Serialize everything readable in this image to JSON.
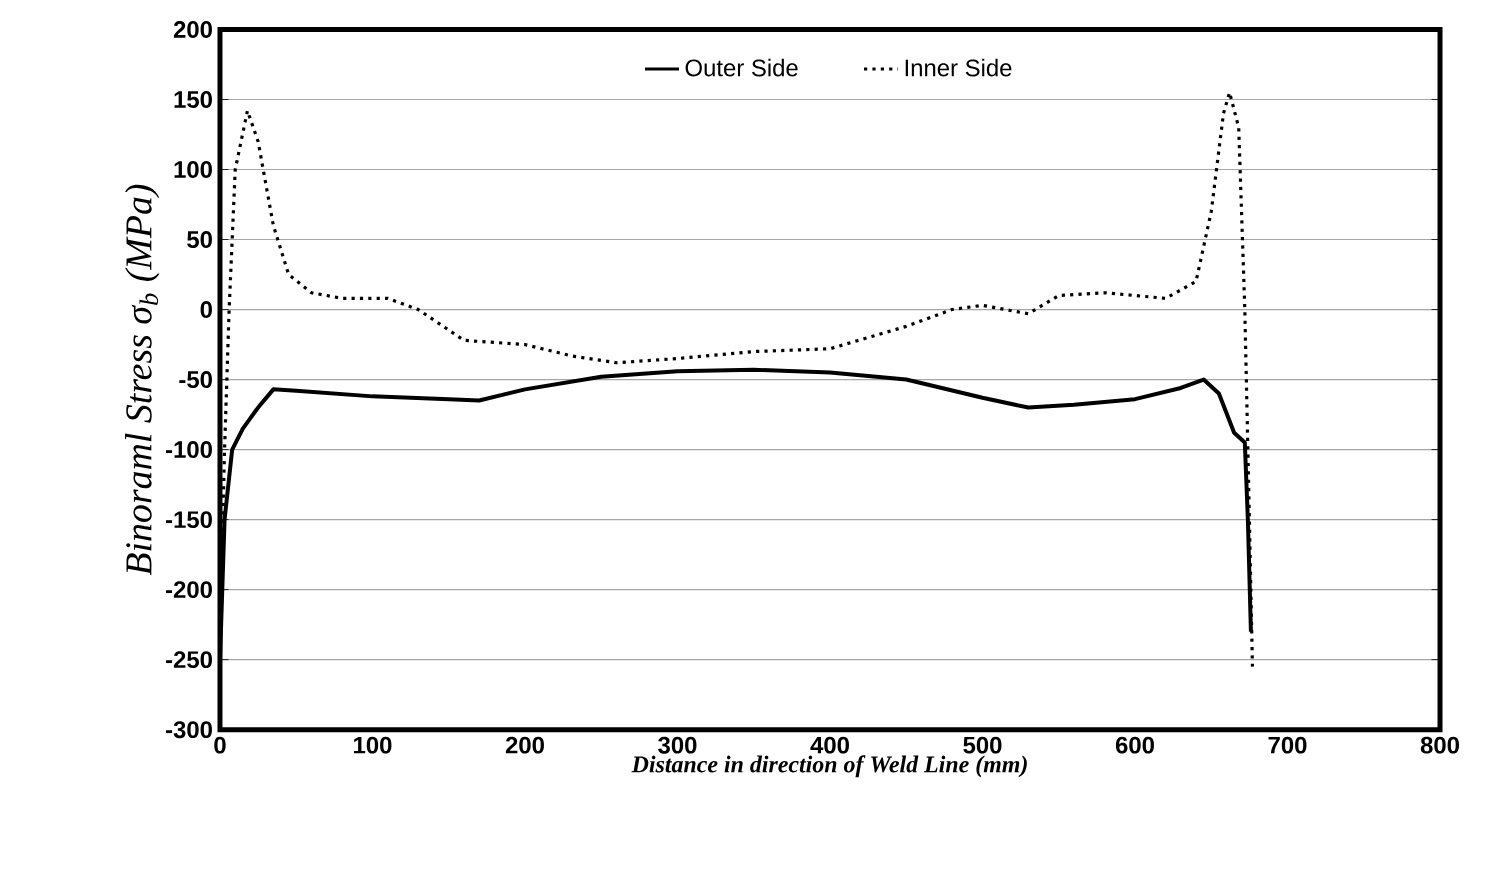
{
  "chart_data": {
    "type": "line",
    "xlabel": "Distance in direction of Weld Line (mm)",
    "ylabel": "Binoraml Stress σ$_{b}$ (MPa)",
    "xlim": [
      0,
      800
    ],
    "xticks": [
      0,
      100,
      200,
      300,
      400,
      500,
      600,
      700,
      800
    ],
    "ylim": [
      -300,
      200
    ],
    "yticks": [
      -300,
      -250,
      -200,
      -150,
      -100,
      -50,
      0,
      50,
      100,
      150,
      200
    ],
    "grid": "y",
    "legend": "top",
    "marker": "none",
    "series": [
      {
        "name": "Outer Side",
        "color": "#000000",
        "line_style": "solid",
        "x": [
          0,
          3,
          8,
          15,
          25,
          35,
          50,
          100,
          150,
          170,
          200,
          250,
          300,
          350,
          400,
          450,
          500,
          530,
          560,
          600,
          630,
          645,
          655,
          665,
          672,
          674,
          676
        ],
        "values": [
          -250,
          -150,
          -100,
          -85,
          -70,
          -57,
          -58,
          -62,
          -64,
          -65,
          -57,
          -48,
          -44,
          -43,
          -45,
          -50,
          -63,
          -70,
          -68,
          -64,
          -56,
          -50,
          -60,
          -88,
          -95,
          -150,
          -230
        ]
      },
      {
        "name": "Inner Side",
        "color": "#000000",
        "line_style": "dotted",
        "x": [
          0,
          3,
          6,
          10,
          18,
          25,
          35,
          45,
          60,
          80,
          110,
          130,
          160,
          200,
          230,
          260,
          300,
          350,
          400,
          450,
          480,
          500,
          530,
          550,
          580,
          620,
          640,
          650,
          658,
          662,
          668,
          672,
          675,
          677
        ],
        "values": [
          -230,
          -100,
          0,
          100,
          142,
          120,
          60,
          25,
          12,
          8,
          8,
          0,
          -22,
          -25,
          -33,
          -38,
          -35,
          -30,
          -28,
          -12,
          0,
          3,
          -3,
          10,
          12,
          8,
          20,
          70,
          140,
          155,
          130,
          0,
          -150,
          -255
        ]
      }
    ]
  }
}
